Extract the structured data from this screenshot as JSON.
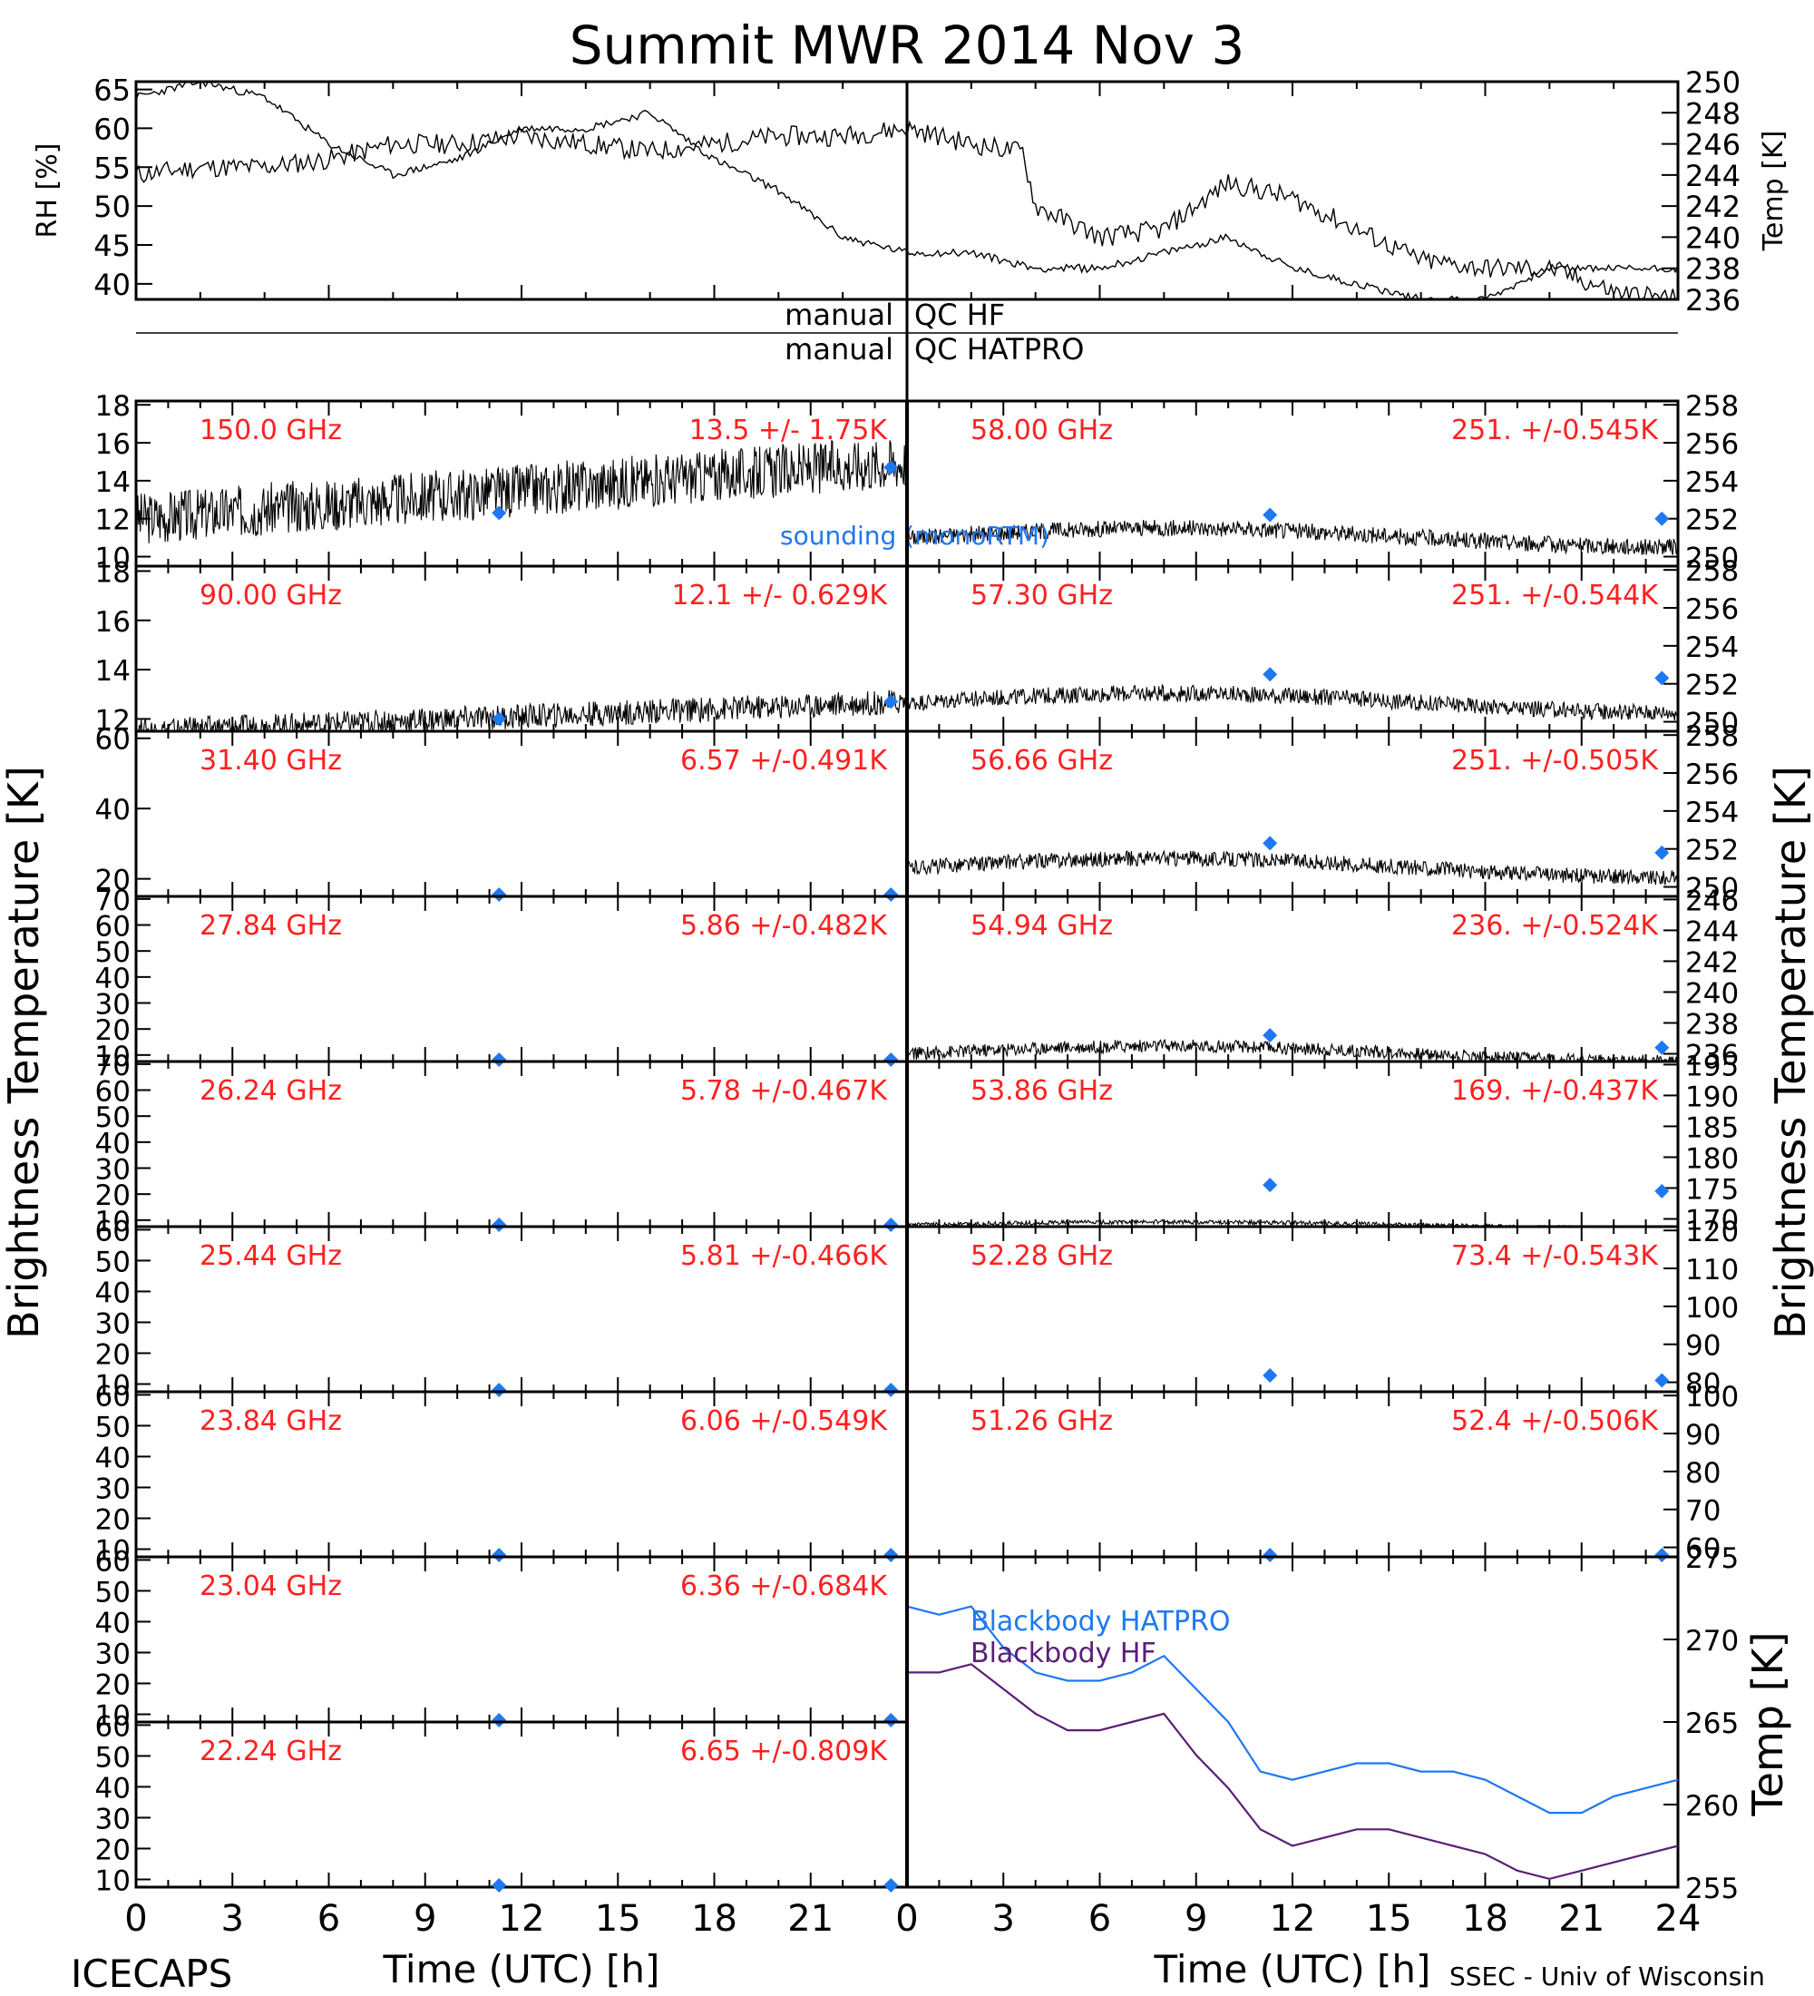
{
  "title": "Summit MWR 2014 Nov  3",
  "footer": {
    "left": "ICECAPS",
    "right": "SSEC - Univ of Wisconsin"
  },
  "xlabel": "Time (UTC) [h]",
  "colors": {
    "trace": "#000000",
    "freq_label": "#ff2020",
    "sounding": "#1e78f0",
    "bb_hatpro": "#1e78f0",
    "bb_hf": "#5a1e78"
  },
  "met": {
    "rh_label": "RH [%]",
    "temp_label": "Temp [K]",
    "rh_ticks": [
      "40",
      "45",
      "50",
      "55",
      "60",
      "65"
    ],
    "temp_ticks": [
      "236",
      "238",
      "240",
      "242",
      "244",
      "246",
      "248",
      "250"
    ]
  },
  "qc": {
    "hf_left": "manual",
    "hf_right": "QC HF",
    "hatpro_left": "manual",
    "hatpro_right": "QC HATPRO"
  },
  "left_ylabel": "Brightness Temperature [K]",
  "right_ylabel": "Brightness Temperature [K]",
  "bb_ylabel": "Temp [K]",
  "sounding_label": "sounding (monoRTM)",
  "left_xticks": [
    "0",
    "3",
    "6",
    "9",
    "12",
    "15",
    "18",
    "21"
  ],
  "right_xticks": [
    "0",
    "3",
    "6",
    "9",
    "12",
    "15",
    "18",
    "21",
    "24"
  ],
  "left_channels": [
    {
      "freq": "150.0 GHz",
      "stat": "13.5 +/-  1.75K",
      "ticks": [
        "10",
        "12",
        "14",
        "16",
        "18"
      ]
    },
    {
      "freq": "90.00 GHz",
      "stat": "12.1 +/- 0.629K",
      "ticks": [
        "12",
        "14",
        "16",
        "18"
      ]
    },
    {
      "freq": "31.40 GHz",
      "stat": "6.57 +/-0.491K",
      "ticks": [
        "20",
        "40",
        "60"
      ]
    },
    {
      "freq": "27.84 GHz",
      "stat": "5.86 +/-0.482K",
      "ticks": [
        "10",
        "20",
        "30",
        "40",
        "50",
        "60",
        "70"
      ]
    },
    {
      "freq": "26.24 GHz",
      "stat": "5.78 +/-0.467K",
      "ticks": [
        "10",
        "20",
        "30",
        "40",
        "50",
        "60",
        "70"
      ]
    },
    {
      "freq": "25.44 GHz",
      "stat": "5.81 +/-0.466K",
      "ticks": [
        "10",
        "20",
        "30",
        "40",
        "50",
        "60"
      ]
    },
    {
      "freq": "23.84 GHz",
      "stat": "6.06 +/-0.549K",
      "ticks": [
        "10",
        "20",
        "30",
        "40",
        "50",
        "60"
      ]
    },
    {
      "freq": "23.04 GHz",
      "stat": "6.36 +/-0.684K",
      "ticks": [
        "10",
        "20",
        "30",
        "40",
        "50",
        "60"
      ]
    },
    {
      "freq": "22.24 GHz",
      "stat": "6.65 +/-0.809K",
      "ticks": [
        "10",
        "20",
        "30",
        "40",
        "50",
        "60"
      ]
    }
  ],
  "right_channels": [
    {
      "freq": "58.00 GHz",
      "stat": "251. +/-0.545K",
      "ticks": [
        "250",
        "252",
        "254",
        "256",
        "258"
      ]
    },
    {
      "freq": "57.30 GHz",
      "stat": "251. +/-0.544K",
      "ticks": [
        "250",
        "252",
        "254",
        "256",
        "258"
      ]
    },
    {
      "freq": "56.66 GHz",
      "stat": "251. +/-0.505K",
      "ticks": [
        "250",
        "252",
        "254",
        "256",
        "258"
      ]
    },
    {
      "freq": "54.94 GHz",
      "stat": "236. +/-0.524K",
      "ticks": [
        "236",
        "238",
        "240",
        "242",
        "244",
        "246"
      ]
    },
    {
      "freq": "53.86 GHz",
      "stat": "169. +/-0.437K",
      "ticks": [
        "170",
        "175",
        "180",
        "185",
        "190",
        "195"
      ]
    },
    {
      "freq": "52.28 GHz",
      "stat": "73.4 +/-0.543K",
      "ticks": [
        "80",
        "90",
        "100",
        "110",
        "120"
      ]
    },
    {
      "freq": "51.26 GHz",
      "stat": "52.4 +/-0.506K",
      "ticks": [
        "60",
        "70",
        "80",
        "90",
        "100"
      ]
    }
  ],
  "bb": {
    "ticks": [
      "255",
      "260",
      "265",
      "270",
      "275"
    ],
    "hatpro_label": "Blackbody HATPRO",
    "hf_label": "Blackbody HF"
  },
  "chart_data": [
    {
      "type": "line",
      "title": "Summit MWR 2014 Nov  3",
      "panel": "RH",
      "ylabel": "RH [%]",
      "xlim": [
        0,
        24
      ],
      "ylim": [
        38,
        66
      ],
      "x": [
        0,
        1,
        2,
        3,
        4,
        5,
        6,
        7,
        8,
        9,
        10,
        11,
        12,
        13,
        13.8,
        14,
        15,
        16,
        17,
        18,
        19,
        20,
        21,
        22,
        23,
        24
      ],
      "y": [
        54,
        55,
        55,
        56,
        58,
        58,
        59,
        58,
        57,
        58,
        59,
        59,
        60,
        58,
        57,
        50,
        46,
        47,
        53,
        51,
        47,
        43,
        42,
        42,
        39,
        38
      ]
    },
    {
      "type": "line",
      "panel": "Temp",
      "ylabel": "Temp [K]",
      "xlim": [
        0,
        24
      ],
      "ylim": [
        236,
        250
      ],
      "x": [
        0,
        1,
        2,
        3,
        4,
        5,
        6,
        7,
        8,
        9,
        10,
        11,
        12,
        13,
        14,
        15,
        16,
        17,
        18,
        19,
        20,
        21,
        22,
        23,
        24
      ],
      "y": [
        249,
        250,
        249,
        246,
        244,
        245,
        247,
        247,
        248,
        245,
        243,
        240,
        239,
        239,
        238,
        238,
        239,
        240,
        238,
        237,
        236,
        236,
        238,
        238,
        238
      ]
    },
    {
      "type": "line",
      "panel": "Blackbody",
      "ylabel": "Temp [K]",
      "xlim": [
        0,
        24
      ],
      "ylim": [
        255,
        275
      ],
      "series": [
        {
          "name": "Blackbody HATPRO",
          "x": [
            0,
            1,
            2,
            3,
            4,
            5,
            6,
            7,
            8,
            9,
            10,
            11,
            12,
            13,
            14,
            15,
            16,
            17,
            18,
            19,
            20,
            21,
            22,
            23,
            24
          ],
          "y": [
            272,
            271.5,
            272,
            269.5,
            268,
            267.5,
            267.5,
            268,
            269,
            267,
            265,
            262,
            261.5,
            262,
            262.5,
            262.5,
            262,
            262,
            261.5,
            260.5,
            259.5,
            259.5,
            260.5,
            261,
            261.5
          ]
        },
        {
          "name": "Blackbody HF",
          "x": [
            0,
            1,
            2,
            3,
            4,
            5,
            6,
            7,
            8,
            9,
            10,
            11,
            12,
            13,
            14,
            15,
            16,
            17,
            18,
            19,
            20,
            21,
            22,
            23,
            24
          ],
          "y": [
            268,
            268,
            268.5,
            267,
            265.5,
            264.5,
            264.5,
            265,
            265.5,
            263,
            261,
            258.5,
            257.5,
            258,
            258.5,
            258.5,
            258,
            257.5,
            257,
            256,
            255.5,
            256,
            256.5,
            257,
            257.5
          ]
        }
      ]
    },
    {
      "type": "scatter",
      "panel": "sounding (monoRTM)",
      "x": [
        11.3,
        23.5
      ],
      "left_values": [
        [
          12.3,
          14.7
        ],
        [
          12.0,
          12.7
        ],
        [
          0,
          0
        ],
        [
          0,
          0
        ],
        [
          0,
          0
        ],
        [
          0,
          0
        ],
        [
          0,
          0
        ],
        [
          0,
          0
        ],
        [
          0,
          0
        ]
      ],
      "right_values": [
        [
          252.2,
          252.0
        ],
        [
          252.5,
          252.3
        ],
        [
          252.3,
          251.8
        ],
        [
          237.2,
          236.4
        ],
        [
          175.5,
          174.5
        ],
        [
          81.8,
          80.5
        ],
        [
          52.9,
          52.9
        ]
      ]
    }
  ]
}
